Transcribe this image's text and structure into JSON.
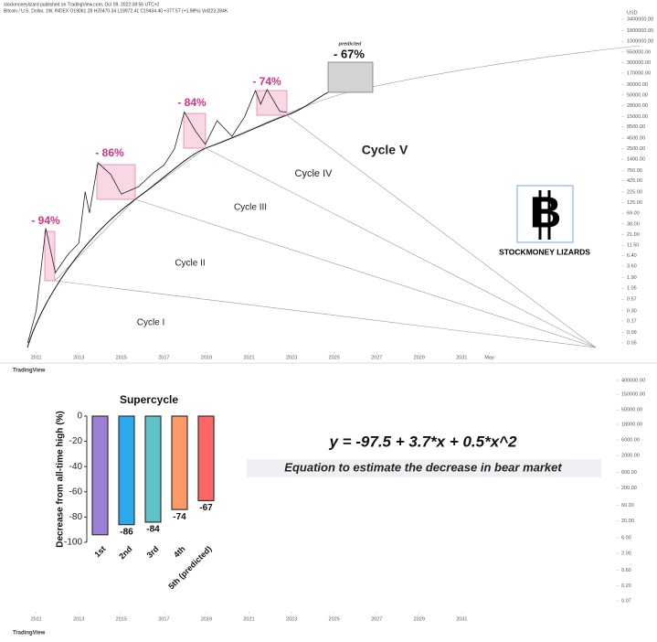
{
  "header": "stockmoneylizard published on TradingView.com, Oct 09, 2022 08:56 UTC+2",
  "equation": "y = -97.5 + 3.7*x + 0.5*x^2",
  "equation_caption": "Equation to estimate the decrease in bear market",
  "brand": "TradingView",
  "logo_text": "STOCKMONEY LIZARDS",
  "chart_data": [
    {
      "type": "line",
      "title": "Bitcoin / U.S. Dollar, 1W, INDEX O19061.28 H20470.34 L18972.41 C19434.40 +377.57 (+1.98%) Vol223.284K",
      "y_unit": "USD",
      "log_scale": true,
      "annotations": [
        "predicted",
        "- 94%",
        "- 86%",
        "- 84%",
        "- 74%",
        "- 67%",
        "Cycle I",
        "Cycle II",
        "Cycle III",
        "Cycle IV",
        "Cycle V"
      ],
      "x": [
        2010.6,
        2011.0,
        2011.45,
        2011.9,
        2012.5,
        2013.0,
        2013.3,
        2013.5,
        2013.9,
        2014.5,
        2015.0,
        2015.8,
        2016.5,
        2017.0,
        2017.5,
        2017.96,
        2018.5,
        2018.95,
        2019.5,
        2020.2,
        2020.8,
        2021.3,
        2021.55,
        2021.85,
        2022.45,
        2022.77
      ],
      "series": [
        {
          "name": "BTCUSD",
          "color": "#222222",
          "values": [
            0.05,
            0.3,
            30,
            2.5,
            7,
            13,
            230,
            70,
            1150,
            600,
            200,
            300,
            650,
            1000,
            2500,
            19500,
            6500,
            3200,
            12000,
            5000,
            15000,
            64000,
            30000,
            68000,
            20000,
            19400
          ]
        }
      ],
      "xlim": [
        2010.5,
        2038.5
      ],
      "ylim": [
        0.03,
        6000000
      ],
      "xticks": [
        2011,
        2013,
        2015,
        2017,
        2019,
        2021,
        2023,
        2025,
        2027,
        2029,
        2031,
        {
          "value": 2032.3,
          "label": "May"
        }
      ],
      "yticks": [
        {
          "value": 3400000,
          "label": "3400000.00"
        },
        {
          "value": 1800000,
          "label": "1800000.00"
        },
        {
          "value": 1000000,
          "label": "1000000.00"
        },
        {
          "value": 550000,
          "label": "550000.00"
        },
        {
          "value": 300000,
          "label": "300000.00"
        },
        {
          "value": 170000,
          "label": "170000.00"
        },
        {
          "value": 90000,
          "label": "90000.00"
        },
        {
          "value": 50000,
          "label": "50000.00"
        },
        {
          "value": 28000,
          "label": "28000.00"
        },
        {
          "value": 15000,
          "label": "15000.00"
        },
        {
          "value": 8500,
          "label": "8500.00"
        },
        {
          "value": 4500,
          "label": "4500.00"
        },
        {
          "value": 2500,
          "label": "2500.00"
        },
        {
          "value": 1400,
          "label": "1400.00"
        },
        {
          "value": 750,
          "label": "750.00"
        },
        {
          "value": 425,
          "label": "425.00"
        },
        {
          "value": 225,
          "label": "225.00"
        },
        {
          "value": 125,
          "label": "125.00"
        },
        {
          "value": 69,
          "label": "69.00"
        },
        {
          "value": 38,
          "label": "38.00"
        },
        {
          "value": 21,
          "label": "21.00"
        },
        {
          "value": 11.5,
          "label": "11.50"
        },
        {
          "value": 6.4,
          "label": "6.40"
        },
        {
          "value": 3.6,
          "label": "3.60"
        },
        {
          "value": 1.9,
          "label": "1.90"
        },
        {
          "value": 1.05,
          "label": "1.05"
        },
        {
          "value": 0.57,
          "label": "0.57"
        },
        {
          "value": 0.3,
          "label": "0.30"
        },
        {
          "value": 0.17,
          "label": "0.17"
        },
        {
          "value": 0.09,
          "label": "0.09"
        },
        {
          "value": 0.05,
          "label": "0.05"
        }
      ]
    },
    {
      "type": "bar",
      "title": "Supercycle",
      "y_label": "Decrease from all-time high (%)",
      "categories": [
        "1st",
        "2nd",
        "3rd",
        "4th",
        "5th (predicted)"
      ],
      "values": [
        -94,
        -86,
        -84,
        -74,
        -67
      ],
      "value_labels": [
        null,
        "-86",
        "-84",
        "-74",
        "-67"
      ],
      "colors": [
        "#9b7fd4",
        "#2aa9ee",
        "#5ec3c7",
        "#ff9a66",
        "#ff6666"
      ],
      "ylim": [
        -100,
        0
      ],
      "yticks": [
        0,
        -20,
        -40,
        -60,
        -80,
        -100
      ]
    },
    {
      "type": "axes",
      "log_scale": true,
      "xlim": [
        2010.5,
        2038.5
      ],
      "ylim": [
        0.07,
        400000
      ],
      "xticks": [
        2011,
        2013,
        2015,
        2017,
        2019,
        2021,
        2023,
        2025,
        2027,
        2029,
        2031
      ],
      "yticks": [
        {
          "value": 400000,
          "label": "400000.00"
        },
        {
          "value": 150000,
          "label": "150000.00"
        },
        {
          "value": 50000,
          "label": "50000.00"
        },
        {
          "value": 18000,
          "label": "18000.00"
        },
        {
          "value": 6000,
          "label": "6000.00"
        },
        {
          "value": 2000,
          "label": "2000.00"
        },
        {
          "value": 600,
          "label": "600.00"
        },
        {
          "value": 200,
          "label": "200.00"
        },
        {
          "value": 60,
          "label": "60.00"
        },
        {
          "value": 20,
          "label": "20.00"
        },
        {
          "value": 6,
          "label": "6.00"
        },
        {
          "value": 2,
          "label": "2.00"
        },
        {
          "value": 0.6,
          "label": "0.60"
        },
        {
          "value": 0.2,
          "label": "0.20"
        },
        {
          "value": 0.07,
          "label": "0.07"
        }
      ]
    }
  ]
}
